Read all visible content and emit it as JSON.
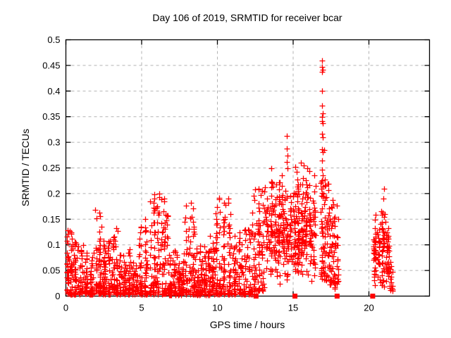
{
  "window": {
    "background": "#ffffff"
  },
  "colors": {
    "points": "#ff0000",
    "border": "#000000",
    "grid": "#b3b3b3",
    "text": "#000000"
  },
  "chart_data": {
    "type": "scatter",
    "title": "Day 106 of 2019, SRMTID for receiver bcar",
    "xlabel": "GPS time / hours",
    "ylabel": "SRMTID / TECUs",
    "xlim": [
      0,
      24
    ],
    "ylim": [
      0,
      0.5
    ],
    "xticks": [
      0,
      5,
      10,
      15,
      20
    ],
    "xtick_labels": [
      "0",
      "5",
      "10",
      "15",
      "20"
    ],
    "yticks": [
      0,
      0.05,
      0.1,
      0.15,
      0.2,
      0.25,
      0.3,
      0.35,
      0.4,
      0.45,
      0.5
    ],
    "ytick_labels": [
      "0",
      "0.05",
      "0.1",
      "0.15",
      "0.2",
      "0.25",
      "0.3",
      "0.35",
      "0.4",
      "0.45",
      "0.5"
    ],
    "grid": true,
    "legend": "none",
    "marker": "plus",
    "marker_size_px": 8,
    "seed": 1062019,
    "cluster_format": "[t_start_hours, t_end_hours, n_points, y_min, y_max, shape] ; shape>0 = power-skew toward y_min, shape=-1 = triangular (mid-peaked)",
    "clusters": [
      [
        0.02,
        0.45,
        70,
        0.003,
        0.13,
        1.8
      ],
      [
        0.45,
        1.15,
        72,
        0.003,
        0.105,
        2.0
      ],
      [
        1.15,
        1.85,
        68,
        0.003,
        0.085,
        2.0
      ],
      [
        1.85,
        2.35,
        58,
        0.005,
        0.165,
        2.2
      ],
      [
        2.35,
        3.0,
        70,
        0.003,
        0.11,
        2.0
      ],
      [
        3.0,
        3.45,
        55,
        0.004,
        0.135,
        2.0
      ],
      [
        3.45,
        4.3,
        80,
        0.003,
        0.095,
        2.0
      ],
      [
        4.3,
        4.75,
        40,
        0.003,
        0.07,
        1.8
      ],
      [
        4.75,
        5.45,
        75,
        0.004,
        0.155,
        2.2
      ],
      [
        5.45,
        6.45,
        100,
        0.004,
        0.195,
        2.3
      ],
      [
        6.45,
        6.75,
        40,
        0.004,
        0.185,
        2.2
      ],
      [
        6.75,
        7.35,
        70,
        0.002,
        0.09,
        2.2
      ],
      [
        7.35,
        7.8,
        55,
        0.002,
        0.075,
        2.0
      ],
      [
        7.8,
        8.55,
        80,
        0.003,
        0.18,
        2.4
      ],
      [
        8.55,
        9.3,
        85,
        0.002,
        0.1,
        2.3
      ],
      [
        9.3,
        9.85,
        60,
        0.002,
        0.12,
        2.0
      ],
      [
        9.85,
        10.25,
        55,
        0.004,
        0.19,
        2.2
      ],
      [
        10.25,
        10.95,
        70,
        0.003,
        0.185,
        2.3
      ],
      [
        10.95,
        11.65,
        65,
        0.003,
        0.125,
        2.0
      ],
      [
        11.65,
        12.3,
        60,
        0.003,
        0.135,
        2.0
      ],
      [
        12.3,
        13.15,
        90,
        0.01,
        0.215,
        1.8
      ],
      [
        13.15,
        14.2,
        115,
        0.015,
        0.24,
        -1
      ],
      [
        14.2,
        15.2,
        115,
        0.02,
        0.25,
        -1
      ],
      [
        15.2,
        16.5,
        170,
        0.02,
        0.24,
        -1
      ],
      [
        16.8,
        17.15,
        55,
        0.03,
        0.23,
        1.2
      ],
      [
        17.15,
        17.45,
        35,
        0.02,
        0.22,
        1.4
      ],
      [
        17.45,
        17.7,
        30,
        0.02,
        0.19,
        1.4
      ],
      [
        17.7,
        18.0,
        30,
        0.015,
        0.18,
        1.4
      ],
      [
        20.25,
        21.35,
        135,
        0.01,
        0.17,
        -1
      ],
      [
        21.35,
        21.55,
        15,
        0.01,
        0.07,
        1.5
      ]
    ],
    "outlier_points": [
      [
        16.93,
        0.46
      ],
      [
        16.9,
        0.447
      ],
      [
        16.95,
        0.442
      ],
      [
        16.93,
        0.437
      ],
      [
        16.93,
        0.4
      ],
      [
        16.9,
        0.372
      ],
      [
        16.95,
        0.356
      ],
      [
        16.9,
        0.349
      ],
      [
        16.93,
        0.341
      ],
      [
        16.96,
        0.337
      ],
      [
        16.9,
        0.316
      ],
      [
        16.94,
        0.31
      ],
      [
        16.92,
        0.286
      ],
      [
        17.06,
        0.285
      ],
      [
        16.95,
        0.281
      ],
      [
        16.93,
        0.265
      ],
      [
        16.9,
        0.246
      ],
      [
        16.94,
        0.236
      ],
      [
        16.91,
        0.226
      ],
      [
        16.96,
        0.214
      ],
      [
        14.58,
        0.312
      ],
      [
        14.6,
        0.288
      ],
      [
        14.63,
        0.274
      ],
      [
        14.57,
        0.262
      ],
      [
        14.61,
        0.25
      ],
      [
        13.58,
        0.25
      ],
      [
        13.62,
        0.222
      ],
      [
        13.56,
        0.212
      ],
      [
        12.95,
        0.205
      ],
      [
        15.15,
        0.252
      ],
      [
        15.25,
        0.242
      ],
      [
        15.52,
        0.26
      ],
      [
        15.72,
        0.255
      ],
      [
        15.95,
        0.25
      ],
      [
        16.05,
        0.244
      ],
      [
        20.98,
        0.21
      ],
      [
        20.95,
        0.19
      ],
      [
        20.8,
        0.166
      ],
      [
        20.92,
        0.163
      ],
      [
        21.05,
        0.16
      ],
      [
        20.85,
        0.158
      ],
      [
        1.95,
        0.168
      ],
      [
        5.85,
        0.198
      ],
      [
        6.15,
        0.2
      ],
      [
        6.5,
        0.19
      ],
      [
        8.25,
        0.182
      ],
      [
        10.1,
        0.192
      ],
      [
        10.7,
        0.19
      ]
    ],
    "baseline_square_markers_x": [
      12.55,
      15.12,
      17.9,
      20.25
    ]
  }
}
